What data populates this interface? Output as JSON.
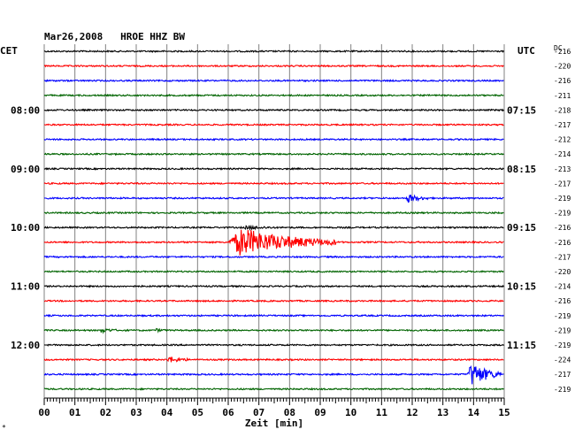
{
  "header": {
    "date_station": "Mar26,2008   HROE HHZ BW",
    "left_tz": "CET",
    "right_tz": "UTC",
    "dc_label": "DC"
  },
  "footnote": "*",
  "colors": {
    "trace_cycle": [
      "#000000",
      "#ff0000",
      "#0000ff",
      "#006400"
    ],
    "grid": "#808080"
  },
  "chart_data": {
    "type": "line",
    "title": "Mar26,2008   HROE HHZ BW",
    "xlabel": "Zeit [min]",
    "x_range": [
      0,
      15
    ],
    "x_ticks": [
      "00",
      "01",
      "02",
      "03",
      "04",
      "05",
      "06",
      "07",
      "08",
      "09",
      "10",
      "11",
      "12",
      "13",
      "14",
      "15"
    ],
    "grid": true,
    "rows_per_hour": 4,
    "left_time_labels": [
      {
        "row": 4,
        "text": "08:00"
      },
      {
        "row": 8,
        "text": "09:00"
      },
      {
        "row": 12,
        "text": "10:00"
      },
      {
        "row": 16,
        "text": "11:00"
      },
      {
        "row": 20,
        "text": "12:00"
      }
    ],
    "right_time_labels": [
      {
        "row": 4,
        "text": "07:15"
      },
      {
        "row": 8,
        "text": "08:15"
      },
      {
        "row": 12,
        "text": "09:15"
      },
      {
        "row": 16,
        "text": "10:15"
      },
      {
        "row": 20,
        "text": "11:15"
      }
    ],
    "traces": [
      {
        "color": "#000000",
        "dc": "-216",
        "events": []
      },
      {
        "color": "#ff0000",
        "dc": "-220",
        "events": []
      },
      {
        "color": "#0000ff",
        "dc": "-216",
        "events": []
      },
      {
        "color": "#006400",
        "dc": "-211",
        "events": []
      },
      {
        "color": "#000000",
        "dc": "-218",
        "events": []
      },
      {
        "color": "#ff0000",
        "dc": "-217",
        "events": []
      },
      {
        "color": "#0000ff",
        "dc": "-212",
        "events": []
      },
      {
        "color": "#006400",
        "dc": "-214",
        "events": []
      },
      {
        "color": "#000000",
        "dc": "-213",
        "events": []
      },
      {
        "color": "#ff0000",
        "dc": "-217",
        "events": []
      },
      {
        "color": "#0000ff",
        "dc": "-219",
        "events": [
          {
            "start": 11.8,
            "end": 12.5,
            "amp": 1.0
          }
        ]
      },
      {
        "color": "#006400",
        "dc": "-219",
        "events": []
      },
      {
        "color": "#000000",
        "dc": "-216",
        "events": [
          {
            "start": 6.5,
            "end": 7.5,
            "amp": 0.4
          }
        ]
      },
      {
        "color": "#ff0000",
        "dc": "-216",
        "events": [
          {
            "start": 6.0,
            "end": 9.5,
            "amp": 3.5
          }
        ]
      },
      {
        "color": "#0000ff",
        "dc": "-217",
        "events": []
      },
      {
        "color": "#006400",
        "dc": "-220",
        "events": []
      },
      {
        "color": "#000000",
        "dc": "-214",
        "events": []
      },
      {
        "color": "#ff0000",
        "dc": "-216",
        "events": []
      },
      {
        "color": "#0000ff",
        "dc": "-219",
        "events": []
      },
      {
        "color": "#006400",
        "dc": "-219",
        "events": [
          {
            "start": 1.8,
            "end": 2.4,
            "amp": 0.5
          },
          {
            "start": 3.6,
            "end": 4.0,
            "amp": 0.3
          }
        ]
      },
      {
        "color": "#000000",
        "dc": "-219",
        "events": []
      },
      {
        "color": "#ff0000",
        "dc": "-224",
        "events": [
          {
            "start": 4.0,
            "end": 4.7,
            "amp": 0.7
          }
        ]
      },
      {
        "color": "#0000ff",
        "dc": "-217",
        "events": [
          {
            "start": 13.8,
            "end": 14.9,
            "amp": 3.0
          }
        ]
      },
      {
        "color": "#006400",
        "dc": "-219",
        "events": []
      }
    ]
  }
}
